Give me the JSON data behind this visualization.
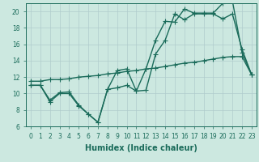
{
  "xlabel": "Humidex (Indice chaleur)",
  "background_color": "#cce8e0",
  "grid_color": "#b0cccc",
  "line_color": "#1a6b5a",
  "xlim": [
    -0.5,
    23.5
  ],
  "ylim": [
    6,
    21
  ],
  "xticks": [
    0,
    1,
    2,
    3,
    4,
    5,
    6,
    7,
    8,
    9,
    10,
    11,
    12,
    13,
    14,
    15,
    16,
    17,
    18,
    19,
    20,
    21,
    22,
    23
  ],
  "yticks": [
    6,
    8,
    10,
    12,
    14,
    16,
    18,
    20
  ],
  "series1_x": [
    0,
    1,
    2,
    3,
    4,
    5,
    6,
    7,
    8,
    9,
    10,
    11,
    12,
    13,
    14,
    15,
    16,
    17,
    18,
    19,
    20,
    21,
    22,
    23
  ],
  "series1_y": [
    11,
    11,
    9,
    10,
    10,
    8.5,
    7.5,
    6.5,
    10.5,
    12.8,
    13,
    10.3,
    13,
    16.5,
    18.8,
    18.7,
    20.3,
    19.8,
    19.8,
    19.8,
    21,
    21.3,
    15,
    12.3
  ],
  "series2_x": [
    0,
    1,
    2,
    3,
    4,
    5,
    6,
    7,
    8,
    9,
    10,
    11,
    12,
    13,
    14,
    15,
    16,
    17,
    18,
    19,
    20,
    21,
    22,
    23
  ],
  "series2_y": [
    11.5,
    11.5,
    11.7,
    11.7,
    11.8,
    12.0,
    12.1,
    12.2,
    12.4,
    12.5,
    12.7,
    12.8,
    13.0,
    13.1,
    13.3,
    13.5,
    13.7,
    13.8,
    14.0,
    14.2,
    14.4,
    14.5,
    14.5,
    12.3
  ],
  "series3_x": [
    0,
    1,
    2,
    3,
    4,
    5,
    6,
    7,
    8,
    9,
    10,
    11,
    12,
    13,
    14,
    15,
    16,
    17,
    18,
    19,
    20,
    21,
    22,
    23
  ],
  "series3_y": [
    11,
    11,
    9.2,
    10.1,
    10.2,
    8.6,
    7.5,
    6.5,
    10.5,
    10.7,
    11,
    10.3,
    10.4,
    14.8,
    16.5,
    19.7,
    19,
    19.7,
    19.7,
    19.7,
    19.1,
    19.7,
    15.4,
    12.3
  ],
  "marker": "+",
  "markersize": 4,
  "linewidth": 1.0,
  "tick_fontsize": 5.5,
  "xlabel_fontsize": 7
}
